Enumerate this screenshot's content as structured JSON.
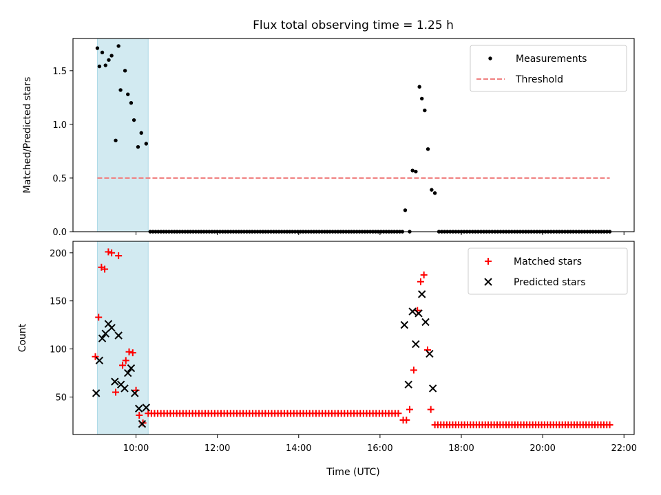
{
  "chart_data": {
    "title": "Flux total observing time = 1.25 h",
    "xlabel": "Time (UTC)",
    "x_tick_labels": [
      "10:00",
      "12:00",
      "14:00",
      "16:00",
      "18:00",
      "20:00",
      "22:00"
    ],
    "x_tick_hours": [
      10,
      12,
      14,
      16,
      18,
      20,
      22
    ],
    "xlim_hours": [
      8.45,
      22.25
    ],
    "shaded_interval_hours": [
      9.05,
      10.3
    ],
    "shade_color": "#add8e6",
    "panels": [
      {
        "type": "scatter",
        "ylabel": "Matched/Predicted stars",
        "ylim": [
          0,
          1.8
        ],
        "y_ticks": [
          0.0,
          0.5,
          1.0,
          1.5
        ],
        "y_tick_labels": [
          "0.0",
          "0.5",
          "1.0",
          "1.5"
        ],
        "threshold": {
          "name": "Threshold",
          "value": 0.5,
          "x_range_hours": [
            9.05,
            21.65
          ],
          "color": "#f08080"
        },
        "series": [
          {
            "name": "Measurements",
            "color": "#000000",
            "marker": "dot",
            "points": [
              [
                9.05,
                1.71
              ],
              [
                9.1,
                1.54
              ],
              [
                9.17,
                1.67
              ],
              [
                9.25,
                1.55
              ],
              [
                9.33,
                1.6
              ],
              [
                9.4,
                1.64
              ],
              [
                9.5,
                0.85
              ],
              [
                9.57,
                1.73
              ],
              [
                9.62,
                1.32
              ],
              [
                9.73,
                1.5
              ],
              [
                9.8,
                1.28
              ],
              [
                9.88,
                1.2
              ],
              [
                9.95,
                1.04
              ],
              [
                10.05,
                0.79
              ],
              [
                10.13,
                0.92
              ],
              [
                10.25,
                0.82
              ],
              [
                16.62,
                0.2
              ],
              [
                16.73,
                0.0
              ],
              [
                16.8,
                0.57
              ],
              [
                16.88,
                0.56
              ],
              [
                16.97,
                1.35
              ],
              [
                17.03,
                1.24
              ],
              [
                17.1,
                1.13
              ],
              [
                17.18,
                0.77
              ],
              [
                17.27,
                0.39
              ],
              [
                17.35,
                0.36
              ]
            ],
            "zero_runs": [
              {
                "from_hour": 10.35,
                "to_hour": 16.55,
                "count": 95,
                "value": 0
              },
              {
                "from_hour": 17.45,
                "to_hour": 21.65,
                "count": 62,
                "value": 0
              }
            ]
          }
        ]
      },
      {
        "type": "scatter",
        "ylabel": "Count",
        "ylim": [
          11,
          212
        ],
        "y_ticks": [
          50,
          100,
          150,
          200
        ],
        "y_tick_labels": [
          "50",
          "100",
          "150",
          "200"
        ],
        "series": [
          {
            "name": "Matched stars",
            "color": "#ff0000",
            "marker": "plus",
            "points": [
              [
                9.0,
                92
              ],
              [
                9.08,
                133
              ],
              [
                9.15,
                185
              ],
              [
                9.23,
                183
              ],
              [
                9.32,
                201
              ],
              [
                9.4,
                200
              ],
              [
                9.5,
                55
              ],
              [
                9.57,
                197
              ],
              [
                9.67,
                83
              ],
              [
                9.75,
                88
              ],
              [
                9.83,
                97
              ],
              [
                9.92,
                96
              ],
              [
                10.0,
                57
              ],
              [
                10.08,
                31
              ],
              [
                10.17,
                23
              ],
              [
                16.57,
                26
              ],
              [
                16.65,
                26
              ],
              [
                16.73,
                37
              ],
              [
                16.83,
                78
              ],
              [
                16.92,
                140
              ],
              [
                17.0,
                170
              ],
              [
                17.08,
                177
              ],
              [
                17.17,
                99
              ],
              [
                17.25,
                37
              ]
            ],
            "flat_runs": [
              {
                "from_hour": 10.3,
                "to_hour": 16.45,
                "count": 80,
                "value": 33
              },
              {
                "from_hour": 17.35,
                "to_hour": 21.65,
                "count": 60,
                "value": 21
              }
            ]
          },
          {
            "name": "Predicted stars",
            "color": "#000000",
            "marker": "x",
            "points": [
              [
                9.02,
                54
              ],
              [
                9.1,
                88
              ],
              [
                9.17,
                111
              ],
              [
                9.25,
                116
              ],
              [
                9.32,
                126
              ],
              [
                9.4,
                122
              ],
              [
                9.48,
                66
              ],
              [
                9.57,
                114
              ],
              [
                9.63,
                63
              ],
              [
                9.72,
                59
              ],
              [
                9.8,
                75
              ],
              [
                9.88,
                80
              ],
              [
                9.97,
                54
              ],
              [
                10.07,
                38
              ],
              [
                10.15,
                22
              ],
              [
                10.25,
                39
              ],
              [
                16.6,
                125
              ],
              [
                16.7,
                63
              ],
              [
                16.8,
                139
              ],
              [
                16.88,
                105
              ],
              [
                16.95,
                137
              ],
              [
                17.03,
                157
              ],
              [
                17.12,
                128
              ],
              [
                17.22,
                95
              ],
              [
                17.3,
                59
              ]
            ]
          }
        ]
      }
    ]
  }
}
